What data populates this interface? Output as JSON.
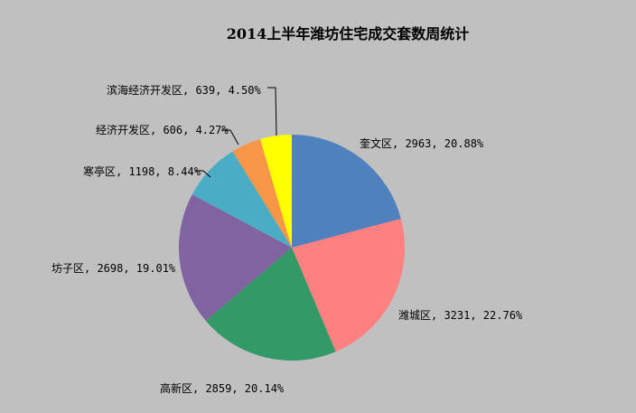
{
  "chart_data": {
    "type": "pie",
    "title": "2014上半年潍坊住宅成交套数周统计",
    "start_angle_deg": 0,
    "direction": "clockwise",
    "slices": [
      {
        "name": "奎文区",
        "value": 2963,
        "percent": "20.88%",
        "label": "奎文区, 2963, 20.88%",
        "color": "#4f81bd"
      },
      {
        "name": "潍城区",
        "value": 3231,
        "percent": "22.76%",
        "label": "潍城区, 3231, 22.76%",
        "color": "#ff8080"
      },
      {
        "name": "高新区",
        "value": 2859,
        "percent": "20.14%",
        "label": "高新区, 2859, 20.14%",
        "color": "#339966"
      },
      {
        "name": "坊子区",
        "value": 2698,
        "percent": "19.01%",
        "label": "坊子区, 2698, 19.01%",
        "color": "#8064a2"
      },
      {
        "name": "寒亭区",
        "value": 1198,
        "percent": "8.44%",
        "label": "寒亭区, 1198, 8.44%",
        "color": "#4bacc6"
      },
      {
        "name": "经济开发区",
        "value": 606,
        "percent": "4.27%",
        "label": "经济开发区, 606, 4.27%",
        "color": "#f79646"
      },
      {
        "name": "滨海经济开发区",
        "value": 639,
        "percent": "4.50%",
        "label": "滨海经济开发区, 639, 4.50%",
        "color": "#ffff00"
      }
    ]
  }
}
